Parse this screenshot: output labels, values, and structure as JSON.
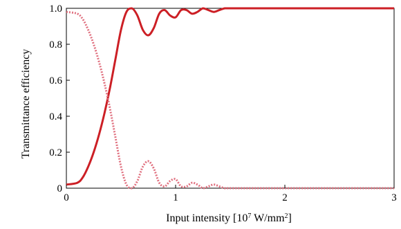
{
  "chart_data": {
    "type": "line",
    "title": "",
    "xlabel": "Input intensity [10",
    "xlabel_sup1": "7",
    "xlabel_mid": " W/mm",
    "xlabel_sup2": "2",
    "xlabel_end": "]",
    "ylabel": "Transmittance efficiency",
    "xlim": [
      0,
      3
    ],
    "ylim": [
      0,
      1.0
    ],
    "xticks": [
      "0",
      "1",
      "2",
      "3"
    ],
    "yticks": [
      "0",
      "0.2",
      "0.4",
      "0.6",
      "0.8",
      "1.0"
    ],
    "grid": false,
    "colors": {
      "solid": "#cc1f25",
      "dotted": "#e0707f"
    },
    "series": [
      {
        "style": "solid",
        "x": [
          0,
          0.1,
          0.15,
          0.2,
          0.25,
          0.3,
          0.35,
          0.4,
          0.45,
          0.5,
          0.55,
          0.6,
          0.65,
          0.7,
          0.75,
          0.8,
          0.85,
          0.9,
          0.95,
          1.0,
          1.05,
          1.1,
          1.15,
          1.2,
          1.25,
          1.3,
          1.35,
          1.4,
          1.45,
          1.5,
          1.6,
          1.7,
          1.8,
          2.0,
          2.5,
          3.0
        ],
        "y": [
          0.02,
          0.03,
          0.06,
          0.12,
          0.2,
          0.3,
          0.42,
          0.56,
          0.72,
          0.88,
          0.98,
          1.0,
          0.96,
          0.88,
          0.85,
          0.89,
          0.97,
          0.99,
          0.96,
          0.95,
          0.99,
          0.99,
          0.97,
          0.98,
          1.0,
          0.99,
          0.98,
          0.99,
          1.0,
          1.0,
          1.0,
          1.0,
          1.0,
          1.0,
          1.0,
          1.0
        ]
      },
      {
        "style": "dotted",
        "x": [
          0,
          0.1,
          0.15,
          0.2,
          0.25,
          0.3,
          0.35,
          0.4,
          0.45,
          0.5,
          0.55,
          0.6,
          0.65,
          0.7,
          0.75,
          0.8,
          0.85,
          0.9,
          0.95,
          1.0,
          1.05,
          1.1,
          1.15,
          1.2,
          1.25,
          1.3,
          1.35,
          1.4,
          1.45,
          1.5,
          1.6,
          1.7,
          1.8,
          2.0,
          2.5,
          3.0
        ],
        "y": [
          0.98,
          0.97,
          0.94,
          0.88,
          0.8,
          0.7,
          0.58,
          0.44,
          0.28,
          0.12,
          0.02,
          0.0,
          0.04,
          0.12,
          0.15,
          0.11,
          0.03,
          0.01,
          0.04,
          0.05,
          0.01,
          0.01,
          0.03,
          0.02,
          0.0,
          0.01,
          0.02,
          0.01,
          0.0,
          0.0,
          0.0,
          0.0,
          0.0,
          0.0,
          0.0,
          0.0
        ]
      }
    ]
  }
}
